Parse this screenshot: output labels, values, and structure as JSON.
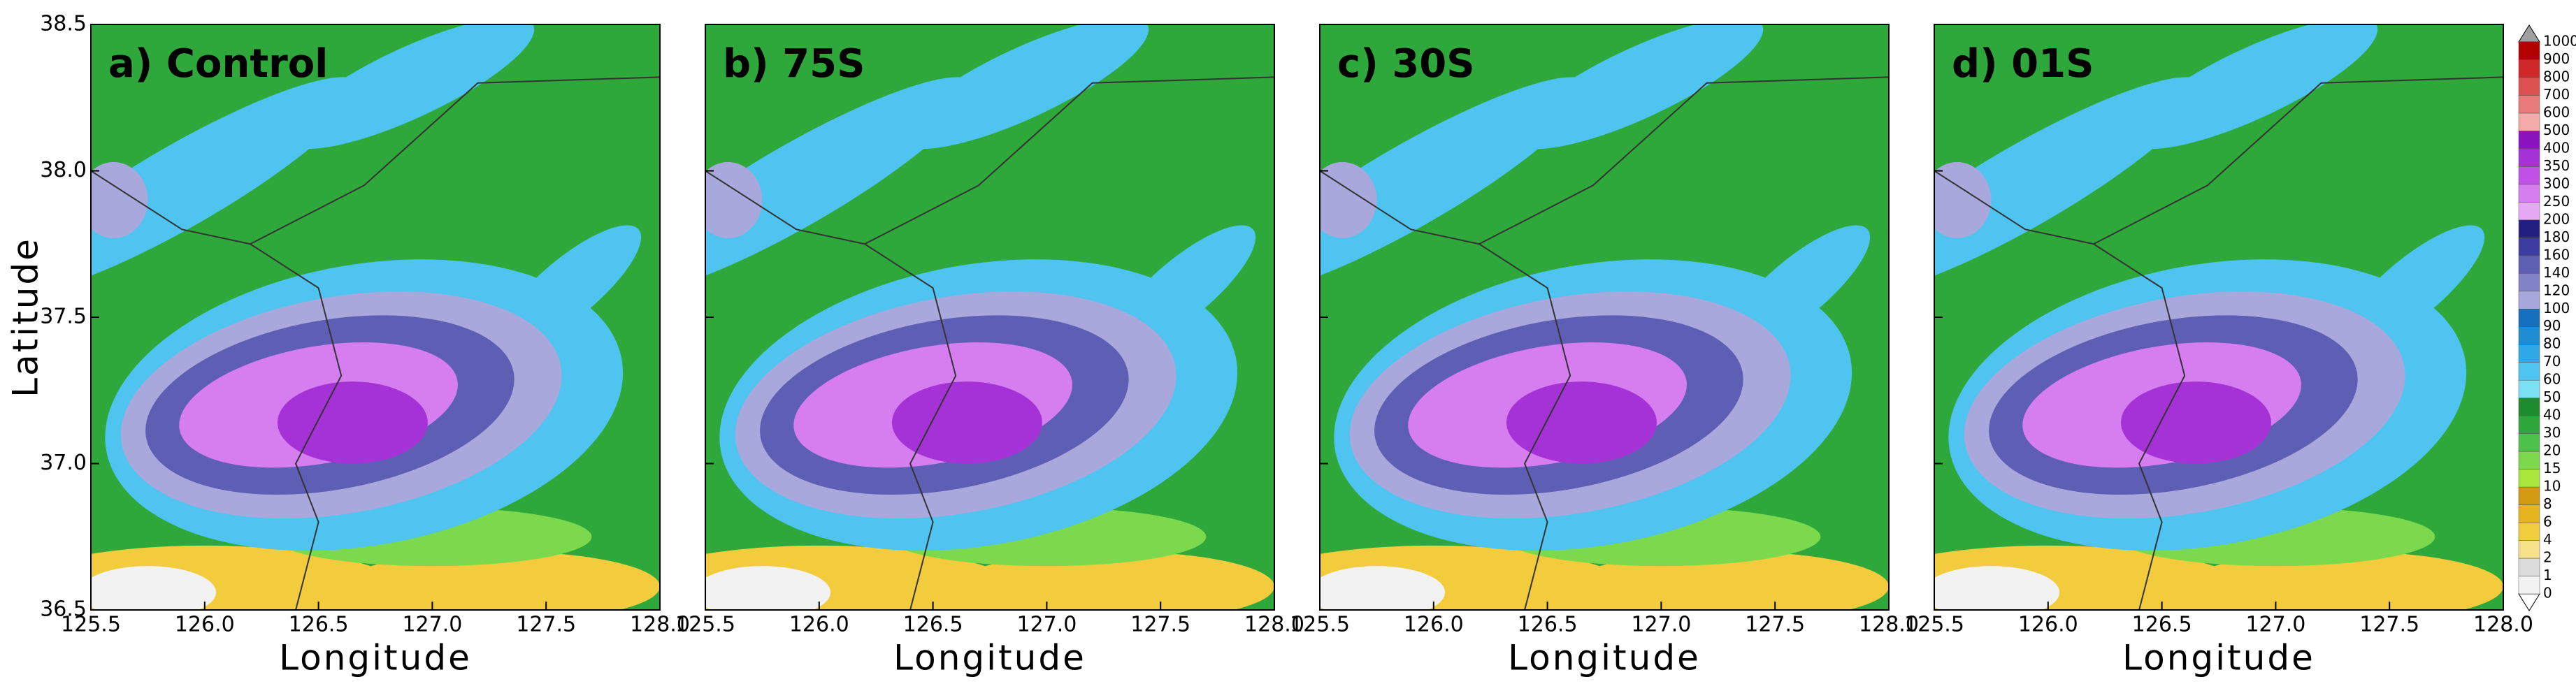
{
  "figure": {
    "xlabel": "Longitude",
    "ylabel": "Latitude",
    "xlim": [
      125.5,
      128.0
    ],
    "xticks": [
      125.5,
      {
        "value": 126.0,
        "label": "126.0"
      },
      126.5,
      {
        "value": 127.0,
        "label": "127.0"
      },
      127.5,
      {
        "value": 128.0,
        "label": "128.0"
      }
    ],
    "ylim": [
      36.5,
      38.5
    ],
    "yticks": [
      36.5,
      {
        "value": 37.0,
        "label": "37.0"
      },
      37.5,
      {
        "value": 38.0,
        "label": "38.0"
      },
      38.5
    ],
    "panels": [
      {
        "title": "a) Control"
      },
      {
        "title": "b) 75S"
      },
      {
        "title": "c) 30S"
      },
      {
        "title": "d) 01S"
      }
    ],
    "colorbar": {
      "levels": [
        0,
        1,
        2,
        4,
        6,
        8,
        10,
        15,
        20,
        30,
        40,
        50,
        60,
        70,
        80,
        90,
        100,
        120,
        140,
        160,
        180,
        200,
        250,
        300,
        350,
        400,
        500,
        600,
        700,
        800,
        900,
        1000
      ],
      "colors": [
        "#f2f2f2",
        "#dcdcdc",
        "#f6e08a",
        "#f2cc3c",
        "#e6b41e",
        "#d29a10",
        "#a8e63c",
        "#7cd84c",
        "#4cc24c",
        "#2ea83a",
        "#1e8c2c",
        "#7ee0f4",
        "#50c4f0",
        "#2ea8e6",
        "#1e8cd2",
        "#1470be",
        "#a8a8dc",
        "#8282c8",
        "#5e5eb4",
        "#3c3ca0",
        "#221e82",
        "#e6aaf5",
        "#d67ef0",
        "#c050e6",
        "#a532d6",
        "#8c14be",
        "#f5aaaa",
        "#e87a7a",
        "#dc5050",
        "#d02828",
        "#b40000"
      ]
    }
  }
}
